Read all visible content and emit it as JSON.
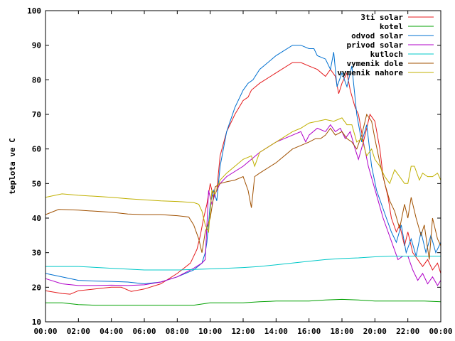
{
  "chart_data": {
    "type": "line",
    "title": "",
    "xlabel": "",
    "ylabel": "teplota ve C",
    "xlim": [
      0,
      24
    ],
    "ylim": [
      10,
      100
    ],
    "x_ticks": [
      {
        "value": 0,
        "label": "00:00"
      },
      {
        "value": 2,
        "label": "02:00"
      },
      {
        "value": 4,
        "label": "04:00"
      },
      {
        "value": 6,
        "label": "06:00"
      },
      {
        "value": 8,
        "label": "08:00"
      },
      {
        "value": 10,
        "label": "10:00"
      },
      {
        "value": 12,
        "label": "12:00"
      },
      {
        "value": 14,
        "label": "14:00"
      },
      {
        "value": 16,
        "label": "16:00"
      },
      {
        "value": 18,
        "label": "18:00"
      },
      {
        "value": 20,
        "label": "20:00"
      },
      {
        "value": 22,
        "label": "22:00"
      },
      {
        "value": 24,
        "label": "00:00"
      }
    ],
    "y_ticks": [
      10,
      20,
      30,
      40,
      50,
      60,
      70,
      80,
      90,
      100
    ],
    "grid": false,
    "legend_position": "top-right",
    "series": [
      {
        "name": "3ti solar",
        "color": "#e41a1c",
        "points": [
          [
            0,
            19
          ],
          [
            1,
            18.2
          ],
          [
            1.5,
            18
          ],
          [
            2,
            19
          ],
          [
            3,
            19.5
          ],
          [
            4,
            20
          ],
          [
            4.6,
            20
          ],
          [
            5.2,
            18.8
          ],
          [
            6,
            19.5
          ],
          [
            7,
            21
          ],
          [
            8,
            24
          ],
          [
            8.8,
            27
          ],
          [
            9.2,
            31
          ],
          [
            9.4,
            35
          ],
          [
            9.6,
            40
          ],
          [
            9.8,
            44
          ],
          [
            10,
            50
          ],
          [
            10.2,
            46
          ],
          [
            10.4,
            48
          ],
          [
            10.6,
            58
          ],
          [
            11,
            65
          ],
          [
            11.5,
            70
          ],
          [
            12,
            74
          ],
          [
            12.3,
            75
          ],
          [
            12.5,
            77
          ],
          [
            13,
            79
          ],
          [
            14,
            82
          ],
          [
            15,
            85
          ],
          [
            15.5,
            85
          ],
          [
            16,
            84
          ],
          [
            16.5,
            83
          ],
          [
            17,
            81
          ],
          [
            17.3,
            83
          ],
          [
            17.6,
            81
          ],
          [
            17.8,
            76
          ],
          [
            18,
            79
          ],
          [
            18.3,
            82
          ],
          [
            18.5,
            77
          ],
          [
            18.8,
            72
          ],
          [
            19,
            70
          ],
          [
            19.3,
            62
          ],
          [
            19.5,
            66
          ],
          [
            19.7,
            70
          ],
          [
            20,
            68
          ],
          [
            20.3,
            60
          ],
          [
            20.5,
            52
          ],
          [
            20.8,
            46
          ],
          [
            21,
            40
          ],
          [
            21.3,
            36
          ],
          [
            21.5,
            38
          ],
          [
            21.8,
            32
          ],
          [
            22,
            36
          ],
          [
            22.3,
            30
          ],
          [
            22.6,
            28
          ],
          [
            22.9,
            26
          ],
          [
            23.2,
            28
          ],
          [
            23.5,
            25
          ],
          [
            23.8,
            27
          ],
          [
            24,
            24
          ]
        ]
      },
      {
        "name": "kotel",
        "color": "#00a000",
        "points": [
          [
            0,
            15.5
          ],
          [
            1,
            15.5
          ],
          [
            2,
            15
          ],
          [
            3,
            14.8
          ],
          [
            5,
            14.8
          ],
          [
            7,
            14.8
          ],
          [
            9,
            14.8
          ],
          [
            10,
            15.5
          ],
          [
            11,
            15.5
          ],
          [
            12,
            15.5
          ],
          [
            13,
            15.8
          ],
          [
            14,
            16
          ],
          [
            16,
            16
          ],
          [
            17,
            16.3
          ],
          [
            18,
            16.5
          ],
          [
            19,
            16.3
          ],
          [
            20,
            16
          ],
          [
            21,
            16
          ],
          [
            22,
            16
          ],
          [
            23,
            16
          ],
          [
            24,
            15.8
          ]
        ]
      },
      {
        "name": "odvod solar",
        "color": "#0070d0",
        "points": [
          [
            0,
            24
          ],
          [
            1,
            23
          ],
          [
            2,
            22
          ],
          [
            3,
            21.8
          ],
          [
            4,
            21.7
          ],
          [
            5,
            21.5
          ],
          [
            6,
            21
          ],
          [
            7,
            21.5
          ],
          [
            8,
            23
          ],
          [
            9,
            25
          ],
          [
            9.5,
            27
          ],
          [
            9.7,
            30
          ],
          [
            9.8,
            33
          ],
          [
            10,
            44
          ],
          [
            10.2,
            48
          ],
          [
            10.4,
            45
          ],
          [
            10.6,
            55
          ],
          [
            11,
            65
          ],
          [
            11.5,
            72
          ],
          [
            12,
            77
          ],
          [
            12.3,
            79
          ],
          [
            12.6,
            80
          ],
          [
            13,
            83
          ],
          [
            14,
            87
          ],
          [
            15,
            90
          ],
          [
            15.5,
            90
          ],
          [
            16,
            89
          ],
          [
            16.3,
            89
          ],
          [
            16.5,
            87
          ],
          [
            17,
            86
          ],
          [
            17.3,
            83
          ],
          [
            17.5,
            88
          ],
          [
            17.7,
            78
          ],
          [
            18,
            82
          ],
          [
            18.3,
            78
          ],
          [
            18.6,
            84
          ],
          [
            18.9,
            70
          ],
          [
            19.2,
            62
          ],
          [
            19.5,
            67
          ],
          [
            19.8,
            55
          ],
          [
            20.1,
            48
          ],
          [
            20.4,
            44
          ],
          [
            20.7,
            40
          ],
          [
            21,
            36
          ],
          [
            21.3,
            33
          ],
          [
            21.6,
            38
          ],
          [
            21.9,
            30
          ],
          [
            22.2,
            34
          ],
          [
            22.5,
            29
          ],
          [
            22.8,
            36
          ],
          [
            23.1,
            30
          ],
          [
            23.4,
            35
          ],
          [
            23.7,
            30
          ],
          [
            24,
            33
          ]
        ]
      },
      {
        "name": "privod solar",
        "color": "#b000c8",
        "points": [
          [
            0,
            22.5
          ],
          [
            1,
            21
          ],
          [
            2,
            20.5
          ],
          [
            3,
            20.5
          ],
          [
            4,
            20.6
          ],
          [
            5,
            20.5
          ],
          [
            6,
            20.7
          ],
          [
            7,
            21.5
          ],
          [
            8,
            23
          ],
          [
            9,
            25.5
          ],
          [
            9.5,
            27
          ],
          [
            9.7,
            28
          ],
          [
            9.9,
            48
          ],
          [
            10.1,
            44
          ],
          [
            10.3,
            47
          ],
          [
            10.6,
            50
          ],
          [
            11,
            52
          ],
          [
            12,
            55
          ],
          [
            12.5,
            57
          ],
          [
            13,
            59
          ],
          [
            14,
            62
          ],
          [
            15,
            64
          ],
          [
            15.5,
            65
          ],
          [
            15.8,
            62
          ],
          [
            16,
            64
          ],
          [
            16.5,
            66
          ],
          [
            17,
            65
          ],
          [
            17.3,
            67
          ],
          [
            17.6,
            65
          ],
          [
            17.9,
            66
          ],
          [
            18.2,
            63
          ],
          [
            18.5,
            65
          ],
          [
            18.8,
            60
          ],
          [
            19,
            57
          ],
          [
            19.3,
            62
          ],
          [
            19.6,
            55
          ],
          [
            19.9,
            50
          ],
          [
            20.2,
            45
          ],
          [
            20.5,
            40
          ],
          [
            20.8,
            36
          ],
          [
            21.1,
            32
          ],
          [
            21.4,
            28
          ],
          [
            21.7,
            29
          ],
          [
            22,
            29
          ],
          [
            22.3,
            25
          ],
          [
            22.6,
            22
          ],
          [
            22.9,
            24
          ],
          [
            23.2,
            21
          ],
          [
            23.5,
            23
          ],
          [
            23.8,
            20.5
          ],
          [
            24,
            22
          ]
        ]
      },
      {
        "name": "kutloch",
        "color": "#00c8c8",
        "points": [
          [
            0,
            26
          ],
          [
            2,
            26
          ],
          [
            4,
            25.5
          ],
          [
            6,
            25
          ],
          [
            8,
            25
          ],
          [
            10,
            25.3
          ],
          [
            11,
            25.5
          ],
          [
            12,
            25.7
          ],
          [
            13,
            26
          ],
          [
            14,
            26.5
          ],
          [
            15,
            27
          ],
          [
            16,
            27.5
          ],
          [
            17,
            28
          ],
          [
            18,
            28.3
          ],
          [
            19,
            28.5
          ],
          [
            20,
            28.8
          ],
          [
            21,
            29
          ],
          [
            22,
            29
          ],
          [
            23,
            29
          ],
          [
            24,
            29
          ]
        ]
      },
      {
        "name": "vymenik dole",
        "color": "#a05000",
        "points": [
          [
            0,
            41
          ],
          [
            0.8,
            42.5
          ],
          [
            2,
            42.3
          ],
          [
            3,
            42
          ],
          [
            4,
            41.7
          ],
          [
            5,
            41.2
          ],
          [
            6,
            41
          ],
          [
            7,
            41
          ],
          [
            8,
            40.7
          ],
          [
            8.7,
            40.3
          ],
          [
            9,
            38
          ],
          [
            9.3,
            34
          ],
          [
            9.5,
            30
          ],
          [
            9.7,
            36
          ],
          [
            10,
            40
          ],
          [
            10.3,
            49
          ],
          [
            10.6,
            50
          ],
          [
            11,
            50.5
          ],
          [
            11.5,
            51
          ],
          [
            12,
            52
          ],
          [
            12.3,
            48
          ],
          [
            12.5,
            43
          ],
          [
            12.7,
            52
          ],
          [
            13,
            53
          ],
          [
            14,
            56
          ],
          [
            15,
            60
          ],
          [
            15.5,
            61
          ],
          [
            16,
            62
          ],
          [
            16.4,
            63
          ],
          [
            16.7,
            63
          ],
          [
            17,
            64
          ],
          [
            17.3,
            66
          ],
          [
            17.6,
            64
          ],
          [
            18,
            65
          ],
          [
            18.3,
            63
          ],
          [
            18.6,
            62
          ],
          [
            18.9,
            60
          ],
          [
            19.2,
            64
          ],
          [
            19.5,
            70
          ],
          [
            19.8,
            68
          ],
          [
            20,
            63
          ],
          [
            20.3,
            56
          ],
          [
            20.6,
            50
          ],
          [
            20.9,
            45
          ],
          [
            21.2,
            42
          ],
          [
            21.5,
            37
          ],
          [
            21.8,
            44
          ],
          [
            22,
            40
          ],
          [
            22.2,
            46
          ],
          [
            22.5,
            40
          ],
          [
            22.8,
            35
          ],
          [
            23,
            38
          ],
          [
            23.3,
            28
          ],
          [
            23.5,
            40
          ],
          [
            23.8,
            34
          ],
          [
            24,
            32
          ]
        ]
      },
      {
        "name": "vymenik nahore",
        "color": "#c0b000",
        "points": [
          [
            0,
            46
          ],
          [
            1,
            47
          ],
          [
            2,
            46.6
          ],
          [
            3,
            46.3
          ],
          [
            4,
            46
          ],
          [
            5,
            45.6
          ],
          [
            6,
            45.3
          ],
          [
            7,
            45
          ],
          [
            8,
            44.8
          ],
          [
            9,
            44.5
          ],
          [
            9.3,
            44
          ],
          [
            9.5,
            42
          ],
          [
            9.7,
            38
          ],
          [
            9.9,
            36
          ],
          [
            10.1,
            48
          ],
          [
            10.3,
            47
          ],
          [
            10.6,
            51
          ],
          [
            11,
            53
          ],
          [
            11.5,
            55
          ],
          [
            12,
            57
          ],
          [
            12.5,
            58
          ],
          [
            12.7,
            55
          ],
          [
            13,
            59
          ],
          [
            14,
            62
          ],
          [
            15,
            65
          ],
          [
            15.5,
            66
          ],
          [
            16,
            67.5
          ],
          [
            16.5,
            68
          ],
          [
            17,
            68.5
          ],
          [
            17.5,
            68
          ],
          [
            18,
            69
          ],
          [
            18.3,
            67
          ],
          [
            18.6,
            67
          ],
          [
            18.9,
            62
          ],
          [
            19.2,
            63
          ],
          [
            19.5,
            58
          ],
          [
            19.8,
            60
          ],
          [
            20,
            57
          ],
          [
            20.3,
            55
          ],
          [
            20.6,
            52
          ],
          [
            20.9,
            50
          ],
          [
            21.2,
            54
          ],
          [
            21.5,
            52
          ],
          [
            21.8,
            50
          ],
          [
            22,
            50
          ],
          [
            22.2,
            55
          ],
          [
            22.4,
            55
          ],
          [
            22.7,
            51
          ],
          [
            22.9,
            53
          ],
          [
            23.2,
            52
          ],
          [
            23.5,
            52
          ],
          [
            23.8,
            53
          ],
          [
            24,
            51
          ]
        ]
      }
    ]
  }
}
